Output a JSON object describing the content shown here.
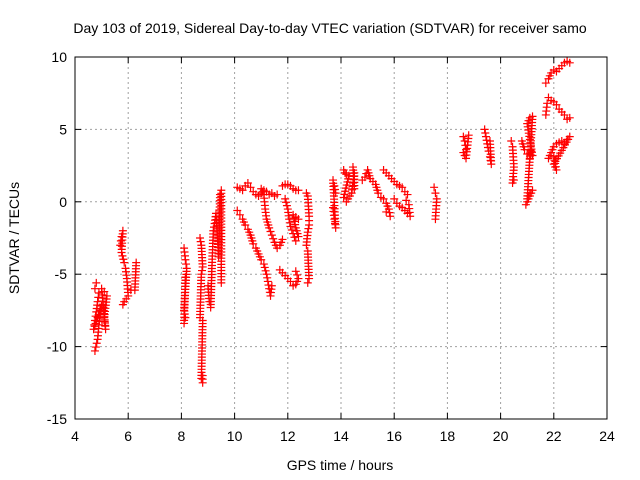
{
  "chart_data": {
    "type": "scatter",
    "title": "Day 103 of 2019, Sidereal Day-to-day VTEC variation (SDTVAR) for receiver samo",
    "xlabel": "GPS time / hours",
    "ylabel": "SDTVAR / TECUs",
    "xlim": [
      4,
      24
    ],
    "ylim": [
      -15,
      10
    ],
    "x_ticks": [
      4,
      6,
      8,
      10,
      12,
      14,
      16,
      18,
      20,
      22,
      24
    ],
    "x_tick_labels": [
      "4",
      "6",
      "8",
      "10",
      "12",
      "14",
      "16",
      "18",
      "20",
      "22",
      "24"
    ],
    "y_ticks": [
      -15,
      -10,
      -5,
      0,
      5,
      10
    ],
    "y_tick_labels": [
      "-15",
      "-10",
      "-5",
      "0",
      "5",
      "10"
    ],
    "grid": true,
    "marker": "+",
    "series": [
      {
        "name": "SDTVAR",
        "color": "#ff0000",
        "segments": [
          [
            [
              4.75,
              -10.3
            ],
            [
              4.85,
              -9.5
            ],
            [
              4.9,
              -8.5
            ],
            [
              4.95,
              -7.8
            ],
            [
              5.0,
              -7.2
            ],
            [
              4.7,
              -8.8
            ],
            [
              4.75,
              -8.2
            ],
            [
              4.8,
              -7.6
            ],
            [
              4.85,
              -6.9
            ],
            [
              4.9,
              -6.3
            ],
            [
              4.75,
              -6.0
            ],
            [
              4.8,
              -5.6
            ]
          ],
          [
            [
              5.1,
              -6.2
            ],
            [
              5.2,
              -6.5
            ],
            [
              5.1,
              -8.0
            ],
            [
              5.15,
              -8.8
            ],
            [
              5.0,
              -6.0
            ]
          ],
          [
            [
              5.7,
              -3.0
            ],
            [
              5.75,
              -2.4
            ],
            [
              5.8,
              -2.0
            ],
            [
              5.75,
              -3.5
            ],
            [
              5.85,
              -4.2
            ],
            [
              5.9,
              -4.6
            ],
            [
              5.95,
              -5.3
            ],
            [
              6.0,
              -6.5
            ],
            [
              5.85,
              -6.9
            ],
            [
              5.8,
              -7.1
            ]
          ],
          [
            [
              6.1,
              -6.1
            ],
            [
              6.25,
              -6.1
            ],
            [
              6.3,
              -4.2
            ]
          ],
          [
            [
              8.1,
              -3.2
            ],
            [
              8.15,
              -4.0
            ],
            [
              8.2,
              -4.6
            ],
            [
              8.1,
              -7.5
            ],
            [
              8.15,
              -8.0
            ],
            [
              8.1,
              -8.4
            ],
            [
              8.15,
              -5.2
            ]
          ],
          [
            [
              8.7,
              -2.5
            ],
            [
              8.75,
              -3.0
            ],
            [
              8.8,
              -4.5
            ],
            [
              8.75,
              -5.0
            ],
            [
              8.7,
              -8.0
            ],
            [
              8.8,
              -8.2
            ],
            [
              8.75,
              -12.2
            ],
            [
              8.8,
              -12.5
            ],
            [
              8.8,
              -12.0
            ]
          ],
          [
            [
              9.0,
              -5.8
            ],
            [
              9.05,
              -6.9
            ],
            [
              9.1,
              -7.3
            ],
            [
              9.15,
              -4.4
            ],
            [
              9.2,
              -2.0
            ],
            [
              9.25,
              -1.5
            ],
            [
              9.3,
              -0.8
            ],
            [
              9.4,
              -3.8
            ],
            [
              9.45,
              0.5
            ],
            [
              9.5,
              0.8
            ],
            [
              9.5,
              -5.6
            ]
          ],
          [
            [
              10.1,
              1.0
            ],
            [
              10.2,
              0.9
            ],
            [
              10.3,
              0.8
            ],
            [
              10.4,
              1.1
            ],
            [
              10.5,
              1.3
            ],
            [
              10.6,
              1.0
            ],
            [
              10.7,
              0.7
            ],
            [
              10.8,
              0.5
            ],
            [
              10.9,
              0.4
            ],
            [
              11.0,
              0.6
            ],
            [
              11.1,
              0.8
            ],
            [
              11.2,
              0.7
            ],
            [
              11.3,
              0.5
            ],
            [
              11.4,
              0.6
            ],
            [
              11.5,
              0.4
            ],
            [
              11.6,
              0.5
            ]
          ],
          [
            [
              10.1,
              -0.6
            ],
            [
              10.2,
              -0.9
            ],
            [
              10.3,
              -1.2
            ],
            [
              10.4,
              -1.6
            ],
            [
              10.5,
              -1.9
            ],
            [
              10.6,
              -2.3
            ],
            [
              10.7,
              -2.9
            ],
            [
              10.8,
              -3.2
            ],
            [
              10.9,
              -3.6
            ],
            [
              11.0,
              -4.0
            ],
            [
              11.1,
              -4.3
            ],
            [
              11.2,
              -5.0
            ],
            [
              11.25,
              -5.5
            ],
            [
              11.3,
              -6.0
            ],
            [
              11.35,
              -6.5
            ],
            [
              11.4,
              -5.8
            ]
          ],
          [
            [
              11.0,
              0.9
            ],
            [
              11.1,
              0.5
            ],
            [
              11.15,
              -0.5
            ],
            [
              11.2,
              -1.2
            ],
            [
              11.3,
              -1.8
            ],
            [
              11.4,
              -2.3
            ],
            [
              11.5,
              -2.8
            ],
            [
              11.6,
              -3.2
            ],
            [
              11.7,
              -3.0
            ],
            [
              11.8,
              -2.6
            ]
          ],
          [
            [
              11.7,
              -4.7
            ],
            [
              11.8,
              -4.9
            ],
            [
              11.9,
              -5.1
            ],
            [
              12.0,
              -5.3
            ],
            [
              12.1,
              -5.5
            ],
            [
              12.2,
              -5.8
            ],
            [
              12.3,
              -5.7
            ],
            [
              12.4,
              -5.3
            ],
            [
              12.3,
              -4.8
            ]
          ],
          [
            [
              11.8,
              1.1
            ],
            [
              11.9,
              1.2
            ],
            [
              12.0,
              1.2
            ],
            [
              12.1,
              1.1
            ],
            [
              12.2,
              0.9
            ],
            [
              12.3,
              0.8
            ],
            [
              12.4,
              0.8
            ]
          ],
          [
            [
              11.9,
              0.2
            ],
            [
              12.0,
              -0.5
            ],
            [
              12.05,
              -1.2
            ],
            [
              12.1,
              -1.7
            ],
            [
              12.2,
              -2.2
            ],
            [
              12.3,
              -2.7
            ],
            [
              12.4,
              -2.4
            ],
            [
              12.3,
              -1.8
            ],
            [
              12.2,
              -0.9
            ],
            [
              12.4,
              -1.2
            ]
          ],
          [
            [
              12.7,
              0.6
            ],
            [
              12.75,
              0.4
            ],
            [
              12.8,
              -1.0
            ],
            [
              12.8,
              -1.6
            ],
            [
              12.75,
              -2.1
            ],
            [
              12.7,
              -3.0
            ],
            [
              12.75,
              -3.4
            ],
            [
              12.8,
              -5.3
            ],
            [
              12.75,
              -5.6
            ]
          ],
          [
            [
              13.7,
              -0.4
            ],
            [
              13.75,
              -1.2
            ],
            [
              13.8,
              -1.8
            ],
            [
              13.7,
              1.5
            ],
            [
              13.75,
              1.1
            ],
            [
              13.8,
              0.6
            ]
          ],
          [
            [
              14.1,
              2.2
            ],
            [
              14.15,
              2.0
            ],
            [
              14.2,
              1.9
            ],
            [
              14.3,
              1.8
            ],
            [
              14.1,
              0.3
            ],
            [
              14.2,
              0.0
            ],
            [
              14.4,
              0.6
            ],
            [
              14.5,
              2.0
            ],
            [
              14.5,
              0.9
            ],
            [
              14.45,
              2.4
            ]
          ],
          [
            [
              14.8,
              1.5
            ],
            [
              14.9,
              1.7
            ],
            [
              15.0,
              2.2
            ],
            [
              15.1,
              1.6
            ],
            [
              15.2,
              1.4
            ],
            [
              15.3,
              1.2
            ],
            [
              15.4,
              0.6
            ],
            [
              15.5,
              0.3
            ],
            [
              15.6,
              0.2
            ],
            [
              15.7,
              -0.1
            ],
            [
              15.8,
              -0.5
            ],
            [
              15.85,
              -1.0
            ],
            [
              15.7,
              -0.7
            ]
          ],
          [
            [
              15.6,
              2.2
            ],
            [
              15.7,
              2.0
            ],
            [
              15.8,
              1.8
            ],
            [
              15.9,
              1.6
            ],
            [
              16.0,
              1.4
            ],
            [
              16.1,
              1.2
            ],
            [
              16.2,
              1.1
            ],
            [
              16.3,
              1.0
            ],
            [
              16.4,
              0.7
            ],
            [
              16.5,
              0.5
            ]
          ],
          [
            [
              16.0,
              0.2
            ],
            [
              16.1,
              -0.1
            ],
            [
              16.2,
              -0.3
            ],
            [
              16.3,
              -0.4
            ],
            [
              16.4,
              -0.6
            ],
            [
              16.5,
              -0.8
            ],
            [
              16.6,
              -1.0
            ],
            [
              16.55,
              -0.2
            ],
            [
              16.45,
              0.1
            ]
          ],
          [
            [
              17.5,
              1.0
            ],
            [
              17.55,
              0.6
            ],
            [
              17.6,
              0.2
            ],
            [
              17.55,
              -1.2
            ]
          ],
          [
            [
              18.6,
              4.5
            ],
            [
              18.65,
              4.2
            ],
            [
              18.7,
              3.6
            ],
            [
              18.6,
              3.4
            ],
            [
              18.7,
              3.0
            ],
            [
              18.8,
              4.6
            ]
          ],
          [
            [
              19.4,
              5.0
            ],
            [
              19.45,
              4.5
            ],
            [
              19.5,
              4.0
            ],
            [
              19.55,
              3.5
            ],
            [
              19.6,
              3.1
            ],
            [
              19.65,
              2.6
            ],
            [
              19.6,
              4.2
            ]
          ],
          [
            [
              20.4,
              4.2
            ],
            [
              20.45,
              3.8
            ],
            [
              20.5,
              2.4
            ],
            [
              20.45,
              1.3
            ],
            [
              20.5,
              1.5
            ]
          ],
          [
            [
              20.8,
              4.2
            ],
            [
              20.9,
              3.6
            ],
            [
              21.0,
              3.3
            ],
            [
              21.1,
              3.0
            ],
            [
              21.15,
              3.5
            ],
            [
              21.2,
              3.2
            ],
            [
              21.0,
              5.4
            ],
            [
              21.1,
              5.8
            ],
            [
              21.2,
              5.9
            ],
            [
              21.0,
              0.2
            ],
            [
              21.1,
              0.6
            ],
            [
              21.2,
              0.8
            ],
            [
              20.95,
              -0.2
            ]
          ],
          [
            [
              21.7,
              8.2
            ],
            [
              21.8,
              8.5
            ],
            [
              21.9,
              8.9
            ],
            [
              22.0,
              9.1
            ],
            [
              22.1,
              9.0
            ],
            [
              22.2,
              9.2
            ],
            [
              22.3,
              9.4
            ],
            [
              22.4,
              9.6
            ],
            [
              22.5,
              9.7
            ],
            [
              22.6,
              9.6
            ]
          ],
          [
            [
              21.7,
              6.0
            ],
            [
              21.75,
              6.8
            ],
            [
              21.8,
              7.2
            ],
            [
              21.9,
              7.0
            ],
            [
              22.0,
              6.9
            ],
            [
              22.1,
              6.7
            ],
            [
              22.2,
              6.4
            ],
            [
              22.3,
              6.2
            ],
            [
              22.4,
              6.0
            ],
            [
              22.5,
              5.7
            ],
            [
              22.6,
              5.8
            ]
          ],
          [
            [
              21.8,
              3.0
            ],
            [
              21.9,
              3.4
            ],
            [
              22.0,
              3.8
            ],
            [
              22.1,
              4.0
            ],
            [
              22.2,
              4.1
            ],
            [
              22.3,
              4.2
            ],
            [
              22.4,
              4.0
            ],
            [
              22.5,
              4.3
            ],
            [
              22.6,
              4.5
            ],
            [
              22.0,
              2.6
            ],
            [
              22.1,
              2.2
            ],
            [
              22.0,
              3.1
            ]
          ]
        ]
      }
    ]
  }
}
